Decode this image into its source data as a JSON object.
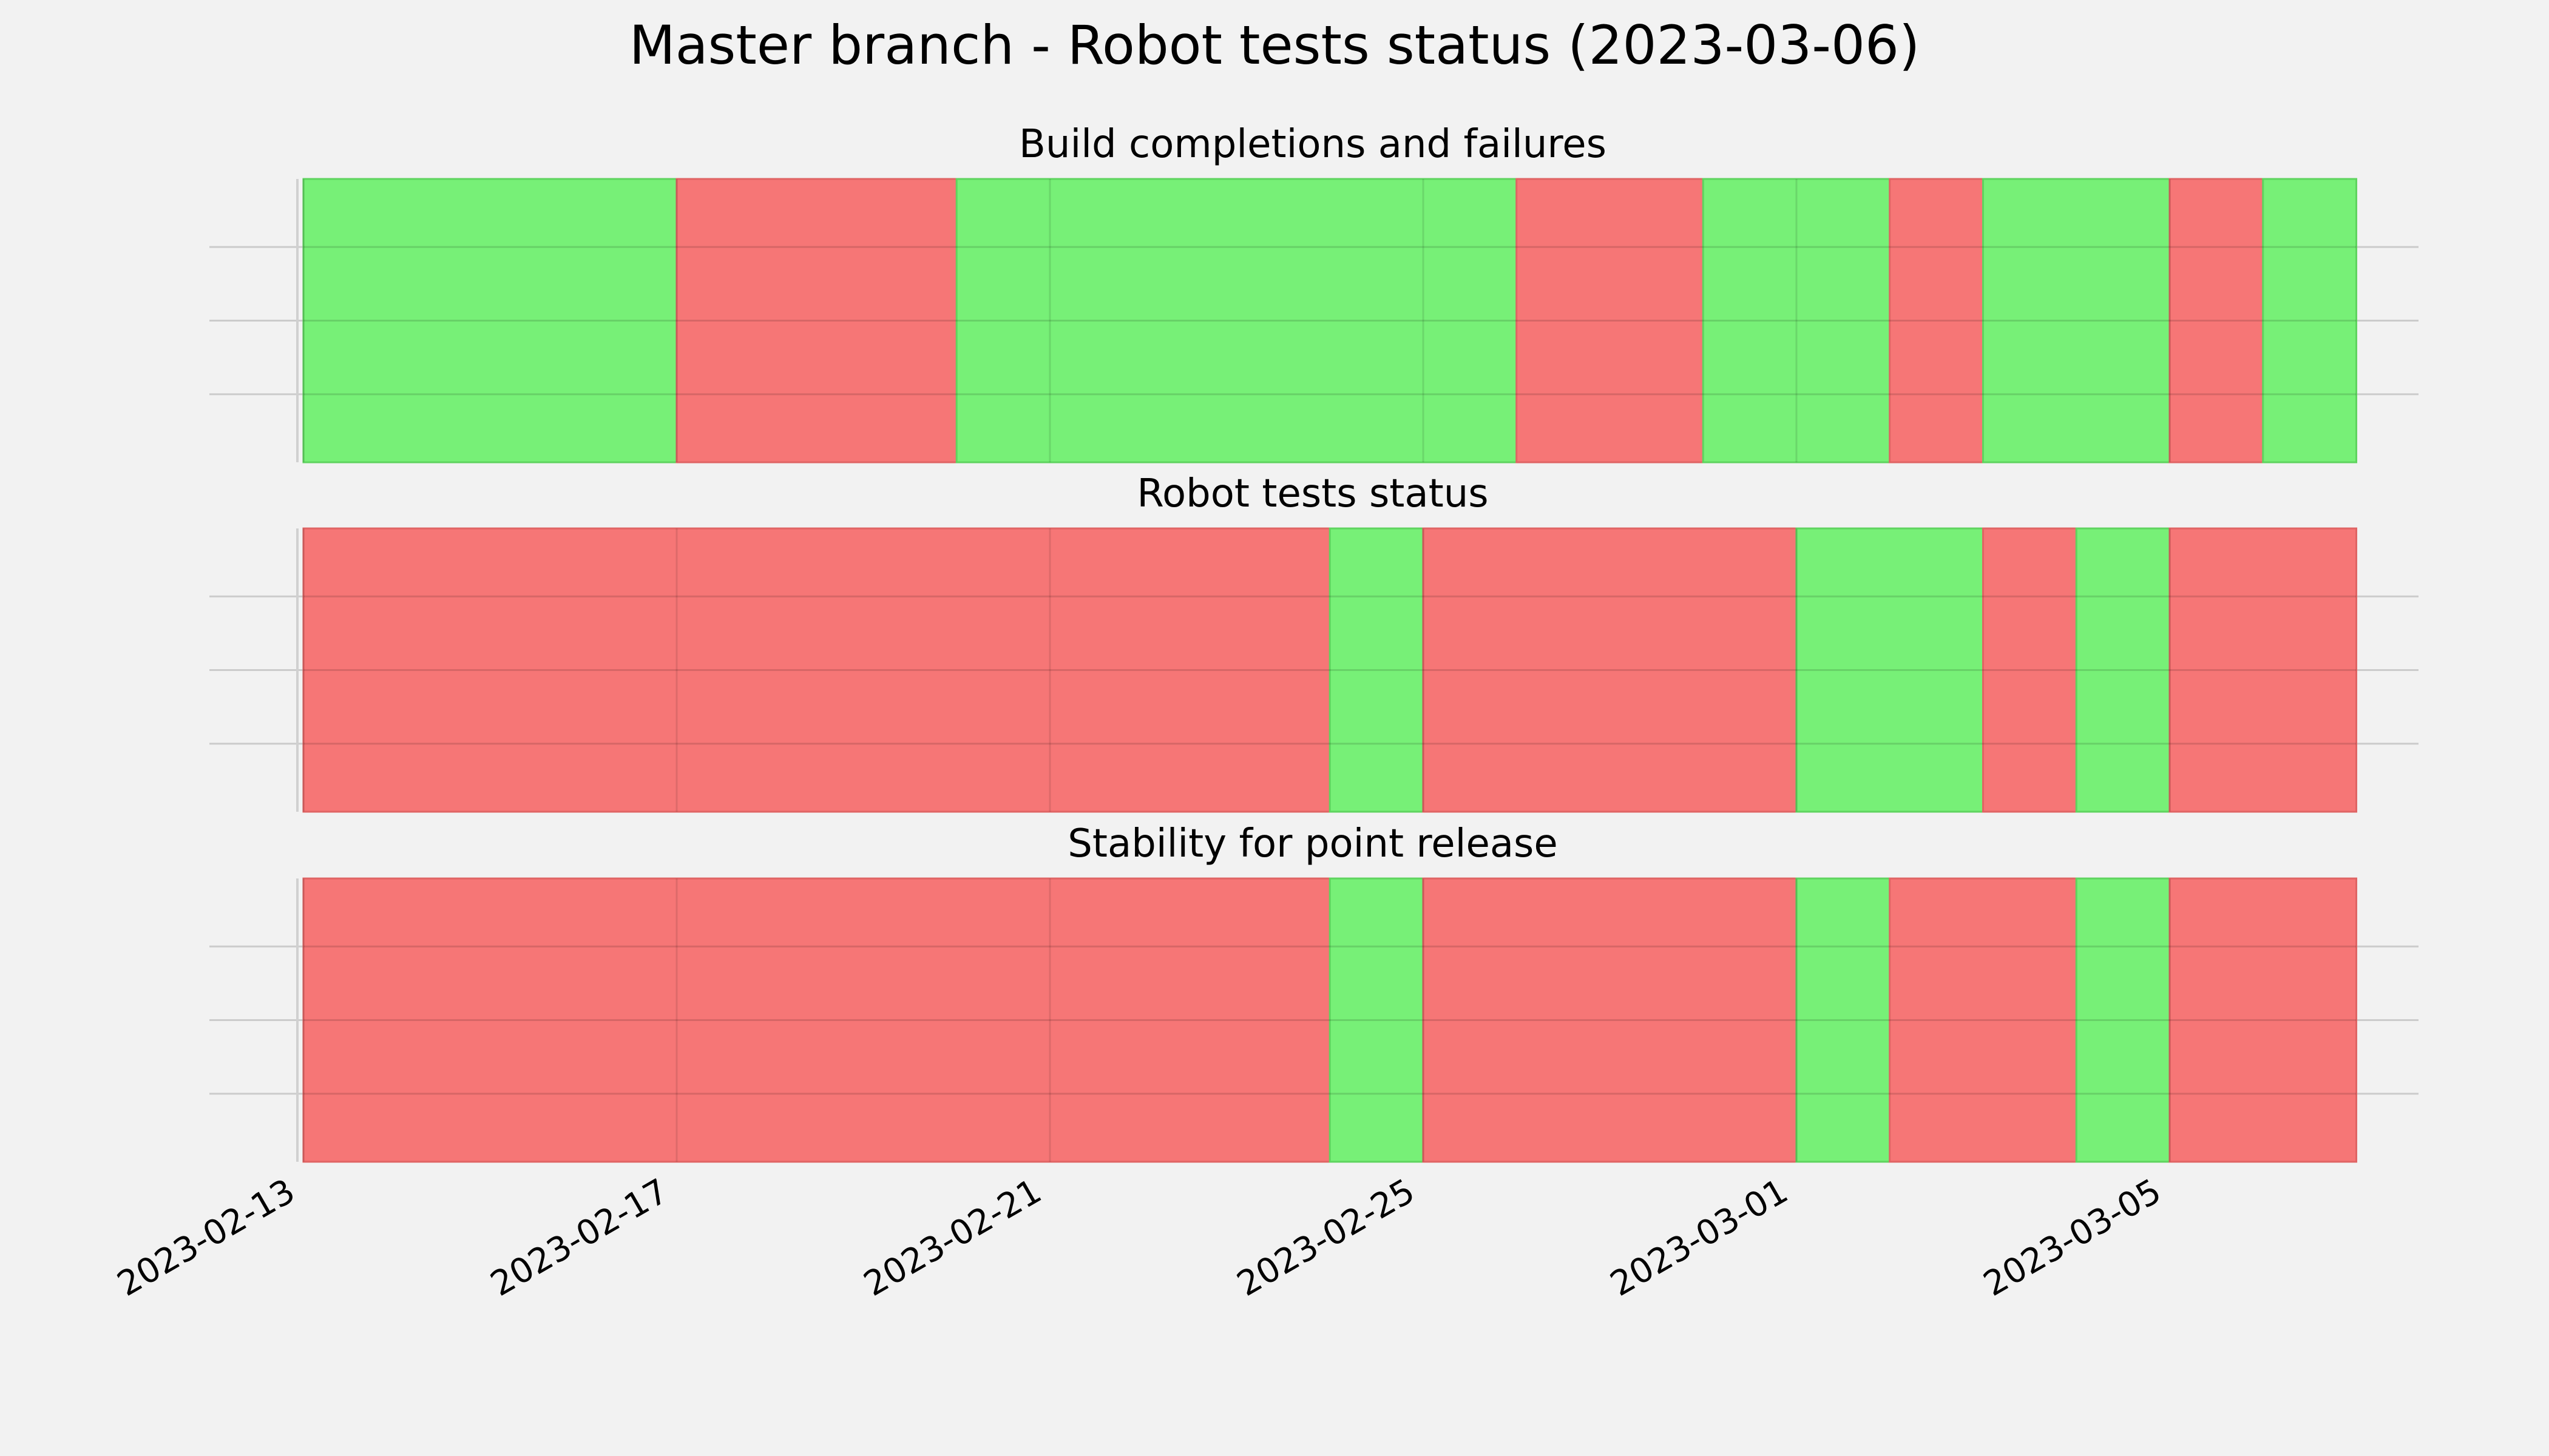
{
  "chart_data": {
    "type": "timeline",
    "title": "Master branch - Robot tests status (2023-03-06)",
    "x_axis": {
      "type": "date",
      "range": [
        "2023-02-13",
        "2023-03-07"
      ],
      "ticks": [
        "2023-02-13",
        "2023-02-17",
        "2023-02-21",
        "2023-02-25",
        "2023-03-01",
        "2023-03-05"
      ],
      "grid": true
    },
    "y_axis": {
      "tick_labels_visible": false,
      "grid": true
    },
    "colors": {
      "pass": "#77f077",
      "fail": "#f67676",
      "background": "#f2f2f2",
      "grid": "#cbcbcb"
    },
    "panels": [
      {
        "title": "Build completions and failures",
        "segments": [
          {
            "start": "2023-02-13",
            "end": "2023-02-17",
            "status": "pass"
          },
          {
            "start": "2023-02-17",
            "end": "2023-02-20",
            "status": "fail"
          },
          {
            "start": "2023-02-20",
            "end": "2023-02-26",
            "status": "pass"
          },
          {
            "start": "2023-02-26",
            "end": "2023-02-28",
            "status": "fail"
          },
          {
            "start": "2023-02-28",
            "end": "2023-03-02",
            "status": "pass"
          },
          {
            "start": "2023-03-02",
            "end": "2023-03-03",
            "status": "fail"
          },
          {
            "start": "2023-03-03",
            "end": "2023-03-05",
            "status": "pass"
          },
          {
            "start": "2023-03-05",
            "end": "2023-03-06",
            "status": "fail"
          },
          {
            "start": "2023-03-06",
            "end": "2023-03-07",
            "status": "pass"
          }
        ]
      },
      {
        "title": "Robot tests status",
        "segments": [
          {
            "start": "2023-02-13",
            "end": "2023-02-24",
            "status": "fail"
          },
          {
            "start": "2023-02-24",
            "end": "2023-02-25",
            "status": "pass"
          },
          {
            "start": "2023-02-25",
            "end": "2023-03-01",
            "status": "fail"
          },
          {
            "start": "2023-03-01",
            "end": "2023-03-03",
            "status": "pass"
          },
          {
            "start": "2023-03-03",
            "end": "2023-03-04",
            "status": "fail"
          },
          {
            "start": "2023-03-04",
            "end": "2023-03-05",
            "status": "pass"
          },
          {
            "start": "2023-03-05",
            "end": "2023-03-07",
            "status": "fail"
          }
        ]
      },
      {
        "title": "Stability for point release",
        "segments": [
          {
            "start": "2023-02-13",
            "end": "2023-02-24",
            "status": "fail"
          },
          {
            "start": "2023-02-24",
            "end": "2023-02-25",
            "status": "pass"
          },
          {
            "start": "2023-02-25",
            "end": "2023-03-01",
            "status": "fail"
          },
          {
            "start": "2023-03-01",
            "end": "2023-03-02",
            "status": "pass"
          },
          {
            "start": "2023-03-02",
            "end": "2023-03-04",
            "status": "fail"
          },
          {
            "start": "2023-03-04",
            "end": "2023-03-05",
            "status": "pass"
          },
          {
            "start": "2023-03-05",
            "end": "2023-03-07",
            "status": "fail"
          }
        ]
      }
    ]
  }
}
